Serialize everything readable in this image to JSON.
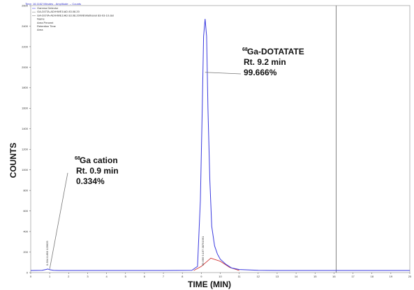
{
  "header": {
    "title": "Time: 16.1162 Minutes - Amplitude: -- Counts",
    "legend_lines": [
      "Gamma Detector",
      "GA-DOTA-AD\\HWE1\\AD 83.08.20",
      "GA-DOTA-AD\\HWE1\\AD 83.08.20\\WE\\Methanol 83-03-10.dat",
      "Name",
      "Area Percent",
      "Retention Time",
      "Area"
    ]
  },
  "chart_data": {
    "type": "line",
    "xlabel": "TIME (MIN)",
    "ylabel": "COUNTS",
    "xlim": [
      0,
      20
    ],
    "ylim": [
      0,
      2600
    ],
    "x_ticks": [
      0,
      1,
      2,
      3,
      4,
      5,
      6,
      7,
      8,
      9,
      10,
      11,
      12,
      13,
      14,
      15,
      16,
      17,
      18,
      19,
      20
    ],
    "y_ticks": [
      0,
      200,
      400,
      600,
      800,
      1000,
      1200,
      1400,
      1600,
      1800,
      2000,
      2200,
      2400,
      2600
    ],
    "cursor_x": 16.1162,
    "series": [
      {
        "color": "#3a3adf",
        "x": [
          0,
          0.6,
          0.8,
          0.9,
          1.0,
          1.2,
          1.5,
          3,
          5,
          7,
          8.5,
          8.8,
          8.95,
          9.05,
          9.12,
          9.2,
          9.28,
          9.35,
          9.45,
          9.55,
          9.7,
          9.85,
          10.0,
          10.3,
          10.6,
          11,
          12,
          13,
          14,
          15,
          16,
          18,
          20
        ],
        "y": [
          20,
          22,
          30,
          35,
          28,
          22,
          20,
          20,
          20,
          20,
          22,
          60,
          700,
          1600,
          2300,
          2470,
          2300,
          1600,
          900,
          450,
          260,
          180,
          130,
          80,
          45,
          30,
          22,
          20,
          20,
          20,
          20,
          20,
          20
        ]
      }
    ],
    "baseline": {
      "color": "#cc2222",
      "x": [
        8.6,
        9.0,
        9.5,
        10.0,
        10.5,
        11.0
      ],
      "y": [
        20,
        60,
        140,
        110,
        50,
        20
      ]
    },
    "peak_labels": [
      {
        "x": 1.0,
        "lines": [
          "0.334",
          "0.893",
          "129925"
        ]
      },
      {
        "x": 9.2,
        "lines": [
          "99.666",
          "9.167",
          "38791991"
        ]
      }
    ],
    "annotations": [
      {
        "sup": "68",
        "lines": [
          "Ga cation",
          "Rt. 0.9 min",
          "0.334%"
        ],
        "target_x": 1.0,
        "target_y": 35
      },
      {
        "sup": "68",
        "lines": [
          "Ga-DOTATATE",
          "Rt. 9.2 min",
          "99.666%"
        ],
        "target_x": 9.2,
        "target_y": 1950
      }
    ]
  }
}
